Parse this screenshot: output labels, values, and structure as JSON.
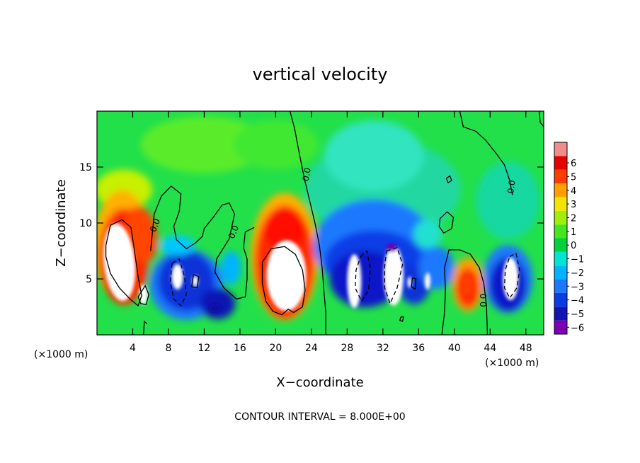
{
  "chart_data": {
    "type": "heatmap",
    "title": "vertical velocity",
    "xlabel": "X−coordinate",
    "ylabel": "Z−coordinate",
    "x_unit_left": "(×1000 m)",
    "x_unit_right": "(×1000 m)",
    "footer": "CONTOUR INTERVAL = 8.000E+00",
    "xlim": [
      0,
      50
    ],
    "ylim": [
      0,
      20
    ],
    "xticks": [
      4,
      8,
      12,
      16,
      20,
      24,
      28,
      32,
      36,
      40,
      44,
      48
    ],
    "yticks": [
      5,
      10,
      15
    ],
    "contour_label": "0.0",
    "colorbar": {
      "levels": [
        -6,
        -5,
        -4,
        -3,
        -2,
        -1,
        0,
        1,
        2,
        3,
        4,
        5,
        6
      ],
      "colors": [
        "#7b00b4",
        "#1414b4",
        "#0a3ce6",
        "#1e78ff",
        "#00b4ff",
        "#00e6d2",
        "#00d23c",
        "#46e61e",
        "#a0ee0a",
        "#f0e600",
        "#ffa000",
        "#ff3c00",
        "#e60000",
        "#f08c8c"
      ]
    },
    "features": [
      {
        "kind": "updraft",
        "x": 3,
        "z": 6.5
      },
      {
        "kind": "downdraft",
        "x": 10,
        "z": 4
      },
      {
        "kind": "updraft",
        "x": 21,
        "z": 5.5
      },
      {
        "kind": "downdraft",
        "x": 29,
        "z": 5
      },
      {
        "kind": "downdraft",
        "x": 33,
        "z": 5.5
      },
      {
        "kind": "downdraft",
        "x": 37,
        "z": 5
      },
      {
        "kind": "updraft",
        "x": 41.5,
        "z": 4
      },
      {
        "kind": "downdraft",
        "x": 46,
        "z": 4.5
      }
    ]
  }
}
